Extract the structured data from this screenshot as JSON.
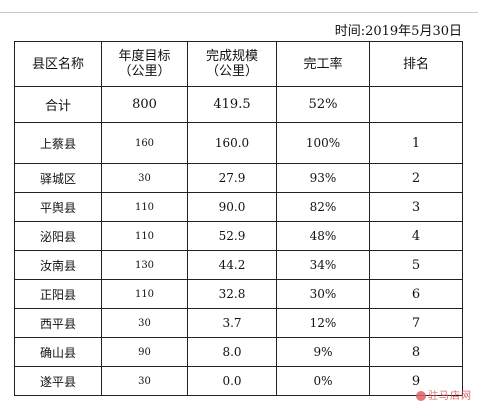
{
  "date_text": "时间:2019年5月30日",
  "headers": {
    "county": "县区名称",
    "target_line1": "年度目标",
    "target_line2": "（公里）",
    "done_line1": "完成规模",
    "done_line2": "（公里）",
    "rate": "完工率",
    "rank": "排名"
  },
  "total": {
    "name": "合计",
    "target": "800",
    "done": "419.5",
    "rate": "52%",
    "rank": ""
  },
  "rows": [
    {
      "name": "上蔡县",
      "target": "160",
      "done": "160.0",
      "rate": "100%",
      "rank": "1"
    },
    {
      "name": "驿城区",
      "target": "30",
      "done": "27.9",
      "rate": "93%",
      "rank": "2"
    },
    {
      "name": "平舆县",
      "target": "110",
      "done": "90.0",
      "rate": "82%",
      "rank": "3"
    },
    {
      "name": "泌阳县",
      "target": "110",
      "done": "52.9",
      "rate": "48%",
      "rank": "4"
    },
    {
      "name": "汝南县",
      "target": "130",
      "done": "44.2",
      "rate": "34%",
      "rank": "5"
    },
    {
      "name": "正阳县",
      "target": "110",
      "done": "32.8",
      "rate": "30%",
      "rank": "6"
    },
    {
      "name": "西平县",
      "target": "30",
      "done": "3.7",
      "rate": "12%",
      "rank": "7"
    },
    {
      "name": "确山县",
      "target": "90",
      "done": "8.0",
      "rate": "9%",
      "rank": "8"
    },
    {
      "name": "遂平县",
      "target": "30",
      "done": "0.0",
      "rate": "0%",
      "rank": "9"
    }
  ],
  "watermark": "驻马店网"
}
